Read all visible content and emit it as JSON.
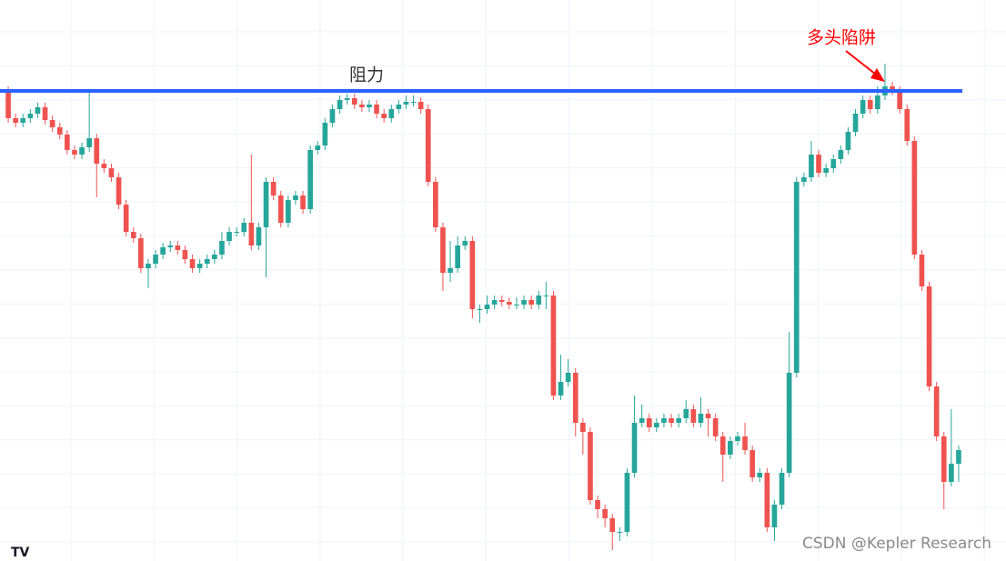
{
  "chart_data": {
    "type": "candlestick",
    "open": [
      517,
      487,
      482,
      487,
      492,
      499,
      485,
      477,
      469,
      452,
      447,
      455,
      465,
      437,
      432,
      422,
      392,
      362,
      355,
      322,
      327,
      337,
      345,
      347,
      342,
      332,
      322,
      327,
      332,
      337,
      352,
      362,
      362,
      372,
      347,
      367,
      417,
      402,
      372,
      397,
      402,
      387,
      452,
      457,
      482,
      497,
      507,
      509,
      502,
      499,
      502,
      492,
      487,
      497,
      502,
      505,
      505,
      497,
      417,
      367,
      317,
      322,
      347,
      352,
      277,
      277,
      282,
      287,
      285,
      282,
      282,
      287,
      282,
      292,
      292,
      182,
      197,
      207,
      152,
      142,
      67,
      57,
      47,
      32,
      32,
      97,
      152,
      157,
      147,
      152,
      157,
      152,
      157,
      167,
      152,
      162,
      157,
      137,
      117,
      132,
      137,
      122,
      92,
      97,
      37,
      62,
      97,
      207,
      417,
      422,
      447,
      427,
      432,
      442,
      452,
      472,
      492,
      507,
      497,
      512,
      522,
      517,
      497,
      462,
      337,
      302,
      192,
      137,
      87,
      107
    ],
    "high": [
      522,
      492,
      492,
      497,
      504,
      504,
      490,
      482,
      474,
      457,
      460,
      517,
      470,
      442,
      437,
      427,
      397,
      367,
      360,
      332,
      342,
      350,
      352,
      352,
      347,
      337,
      332,
      337,
      342,
      362,
      367,
      367,
      377,
      447,
      372,
      422,
      422,
      407,
      402,
      407,
      407,
      457,
      462,
      487,
      502,
      512,
      514,
      514,
      507,
      507,
      507,
      497,
      502,
      507,
      512,
      512,
      510,
      502,
      422,
      372,
      352,
      357,
      357,
      357,
      282,
      292,
      292,
      292,
      290,
      290,
      292,
      292,
      297,
      307,
      297,
      227,
      222,
      212,
      157,
      147,
      72,
      62,
      52,
      37,
      102,
      182,
      172,
      162,
      157,
      162,
      162,
      162,
      177,
      172,
      180,
      167,
      162,
      142,
      137,
      142,
      152,
      127,
      102,
      102,
      67,
      102,
      252,
      422,
      427,
      462,
      452,
      437,
      447,
      457,
      477,
      497,
      512,
      512,
      522,
      547,
      527,
      522,
      502,
      467,
      342,
      307,
      197,
      142,
      167,
      127
    ],
    "low": [
      482,
      477,
      477,
      482,
      487,
      480,
      472,
      464,
      447,
      442,
      442,
      450,
      400,
      427,
      417,
      387,
      357,
      350,
      317,
      300,
      322,
      332,
      340,
      337,
      327,
      317,
      317,
      322,
      327,
      332,
      347,
      357,
      357,
      342,
      342,
      312,
      397,
      367,
      367,
      392,
      382,
      382,
      447,
      452,
      477,
      492,
      502,
      497,
      494,
      494,
      487,
      482,
      482,
      492,
      497,
      500,
      492,
      412,
      362,
      297,
      307,
      317,
      342,
      267,
      262,
      272,
      277,
      280,
      277,
      277,
      277,
      277,
      277,
      277,
      177,
      177,
      192,
      137,
      117,
      62,
      47,
      37,
      12,
      22,
      27,
      92,
      147,
      142,
      142,
      147,
      147,
      147,
      152,
      147,
      147,
      137,
      132,
      87,
      112,
      127,
      117,
      87,
      87,
      32,
      22,
      57,
      92,
      202,
      412,
      417,
      422,
      422,
      427,
      437,
      447,
      467,
      487,
      492,
      492,
      507,
      512,
      492,
      457,
      332,
      297,
      187,
      132,
      57,
      82,
      87
    ],
    "close": [
      487,
      482,
      487,
      492,
      499,
      485,
      477,
      469,
      452,
      447,
      455,
      465,
      437,
      432,
      422,
      392,
      362,
      355,
      322,
      327,
      337,
      345,
      347,
      342,
      332,
      322,
      327,
      332,
      337,
      352,
      362,
      362,
      372,
      347,
      367,
      417,
      402,
      372,
      397,
      402,
      387,
      452,
      457,
      482,
      497,
      507,
      509,
      502,
      499,
      502,
      492,
      487,
      497,
      502,
      505,
      505,
      497,
      417,
      367,
      317,
      322,
      347,
      352,
      277,
      277,
      282,
      287,
      285,
      282,
      282,
      287,
      282,
      292,
      292,
      182,
      197,
      207,
      152,
      142,
      67,
      57,
      47,
      32,
      32,
      97,
      152,
      157,
      147,
      152,
      157,
      152,
      157,
      167,
      152,
      162,
      157,
      137,
      117,
      132,
      137,
      122,
      92,
      97,
      37,
      62,
      97,
      207,
      417,
      422,
      447,
      427,
      432,
      442,
      452,
      472,
      492,
      507,
      497,
      512,
      522,
      517,
      497,
      462,
      337,
      302,
      192,
      137,
      87,
      107,
      122
    ],
    "ylim": [
      0,
      617
    ],
    "up_color": "#26a69a",
    "down_color": "#ef5350",
    "grid": true,
    "lines": [
      {
        "value": 517,
        "color": "#2962ff",
        "label": "阻力"
      }
    ],
    "annotations": [
      {
        "text": "多头陷阱",
        "color": "#ff0000"
      }
    ]
  },
  "watermark": "CSDN @Kepler Research"
}
